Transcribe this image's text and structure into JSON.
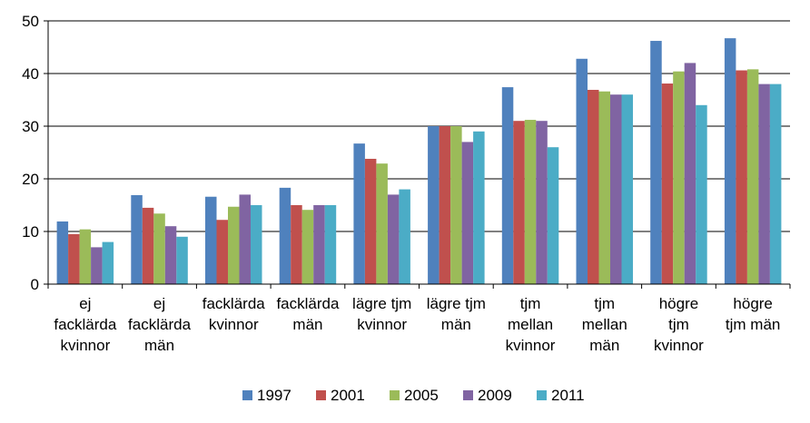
{
  "chart_data": {
    "type": "bar",
    "title": "",
    "xlabel": "",
    "ylabel": "",
    "ylim": [
      0,
      50
    ],
    "yticks": [
      0,
      10,
      20,
      30,
      40,
      50
    ],
    "grid": true,
    "legend_position": "bottom",
    "categories": [
      [
        "ej",
        "facklärda",
        "kvinnor"
      ],
      [
        "ej",
        "facklärda",
        "män"
      ],
      [
        "facklärda",
        "kvinnor"
      ],
      [
        "facklärda",
        "män"
      ],
      [
        "lägre tjm",
        "kvinnor"
      ],
      [
        "lägre tjm",
        "män"
      ],
      [
        "tjm",
        "mellan",
        "kvinnor"
      ],
      [
        "tjm",
        "mellan",
        "män"
      ],
      [
        "högre",
        "tjm",
        "kvinnor"
      ],
      [
        "högre",
        "tjm män"
      ]
    ],
    "series": [
      {
        "name": "1997",
        "color": "#4f81bd",
        "values": [
          11.9,
          16.9,
          16.6,
          18.3,
          26.7,
          30.0,
          37.4,
          42.8,
          46.2,
          46.7
        ]
      },
      {
        "name": "2001",
        "color": "#c0504d",
        "values": [
          9.5,
          14.5,
          12.2,
          15.0,
          23.8,
          30.0,
          31.0,
          36.9,
          38.1,
          40.6
        ]
      },
      {
        "name": "2005",
        "color": "#9bbb59",
        "values": [
          10.4,
          13.4,
          14.7,
          14.1,
          22.9,
          30.0,
          31.2,
          36.6,
          40.4,
          40.8
        ]
      },
      {
        "name": "2009",
        "color": "#8064a2",
        "values": [
          7.0,
          11.0,
          17.0,
          15.0,
          17.0,
          27.0,
          31.0,
          36.0,
          42.0,
          38.0
        ]
      },
      {
        "name": "2011",
        "color": "#4bacc6",
        "values": [
          8.0,
          9.0,
          15.0,
          15.0,
          18.0,
          29.0,
          26.0,
          36.0,
          34.0,
          38.0
        ]
      }
    ]
  }
}
